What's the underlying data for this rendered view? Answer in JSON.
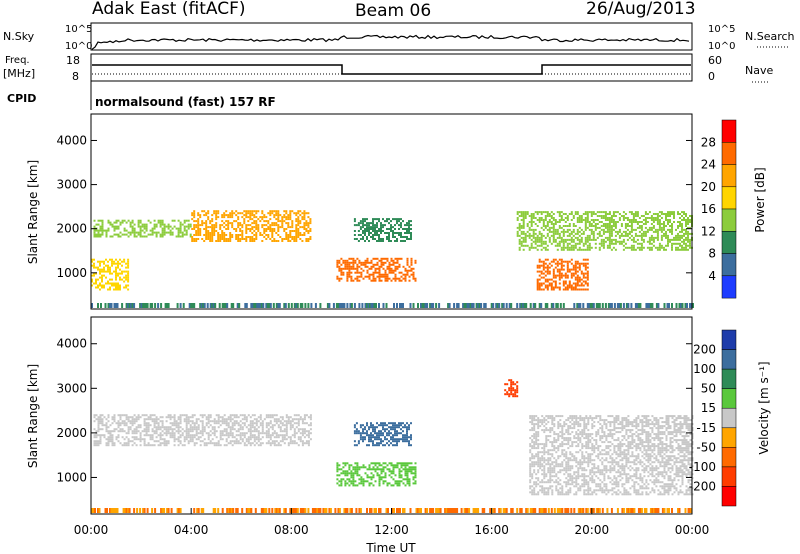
{
  "header": {
    "title": "Adak East (fitACF)",
    "beam": "Beam 06",
    "date": "26/Aug/2013"
  },
  "panels": {
    "nsky_label": "N.Sky",
    "nsearch_label": "N.Search",
    "nsky_ticks": [
      "10^5",
      "10^0"
    ],
    "nsearch_ticks": [
      "10^5",
      "10^0"
    ],
    "freq_label": "Freq.",
    "freq_unit": "[MHz]",
    "freq_ticks": [
      "18",
      "8"
    ],
    "nave_label": "Nave",
    "nave_ticks": [
      "60",
      "0"
    ],
    "cpid_label": "CPID",
    "cpid_value": "normalsound (fast) 157 RF"
  },
  "chart_data": [
    {
      "type": "heatmap",
      "name": "power",
      "ylabel": "Slant Range [km]",
      "xlabel": "Time UT",
      "x_ticks": [
        "00:00",
        "04:00",
        "08:00",
        "12:00",
        "16:00",
        "20:00",
        "00:00"
      ],
      "y_ticks": [
        "1000",
        "2000",
        "3000",
        "4000"
      ],
      "ylim": [
        180,
        4600
      ],
      "xlim_hours": [
        0,
        24
      ],
      "colorbar_label": "Power [dB]",
      "colorbar_ticks": [
        "28",
        "24",
        "20",
        "16",
        "12",
        "8",
        "4"
      ],
      "colorbar_colors": [
        "#ff0000",
        "#ff6a00",
        "#ffa500",
        "#ffd500",
        "#8ccc3c",
        "#2e8b57",
        "#3c6e9e",
        "#1e3cff"
      ],
      "features": [
        {
          "t0": 0.1,
          "t1": 4.0,
          "r0": 1800,
          "r1": 2200,
          "level": 12
        },
        {
          "t0": 4.0,
          "t1": 8.8,
          "r0": 1700,
          "r1": 2400,
          "level": 20
        },
        {
          "t0": 0.0,
          "t1": 1.5,
          "r0": 600,
          "r1": 1300,
          "level": 16
        },
        {
          "t0": 9.8,
          "t1": 13.0,
          "r0": 800,
          "r1": 1300,
          "level": 24
        },
        {
          "t0": 10.5,
          "t1": 12.8,
          "r0": 1700,
          "r1": 2200,
          "level": 8
        },
        {
          "t0": 17.8,
          "t1": 19.8,
          "r0": 600,
          "r1": 1300,
          "level": 24
        },
        {
          "t0": 17.0,
          "t1": 24.0,
          "r0": 1500,
          "r1": 2400,
          "level": 12
        }
      ]
    },
    {
      "type": "heatmap",
      "name": "velocity",
      "ylabel": "Slant Range [km]",
      "xlabel": "Time UT",
      "x_ticks": [
        "00:00",
        "04:00",
        "08:00",
        "12:00",
        "16:00",
        "20:00",
        "00:00"
      ],
      "y_ticks": [
        "1000",
        "2000",
        "3000",
        "4000"
      ],
      "ylim": [
        180,
        4600
      ],
      "xlim_hours": [
        0,
        24
      ],
      "colorbar_label": "Velocity [m s⁻¹]",
      "colorbar_ticks": [
        "200",
        "100",
        "50",
        "15",
        "-15",
        "-50",
        "-100",
        "-200"
      ],
      "colorbar_colors": [
        "#1e3caa",
        "#3c6e9e",
        "#2e8b57",
        "#5ac83c",
        "#c8c8c8",
        "#ffa500",
        "#ff6a00",
        "#ff3c00",
        "#ff0000"
      ],
      "features": [
        {
          "t0": 0.1,
          "t1": 8.8,
          "r0": 1700,
          "r1": 2400,
          "velocity": 0
        },
        {
          "t0": 9.8,
          "t1": 13.0,
          "r0": 800,
          "r1": 1300,
          "velocity": 40
        },
        {
          "t0": 10.5,
          "t1": 12.8,
          "r0": 1700,
          "r1": 2200,
          "velocity": 150
        },
        {
          "t0": 16.5,
          "t1": 17.0,
          "r0": 2800,
          "r1": 3200,
          "velocity": -200
        },
        {
          "t0": 17.5,
          "t1": 24.0,
          "r0": 600,
          "r1": 2400,
          "velocity": 0
        }
      ]
    }
  ]
}
